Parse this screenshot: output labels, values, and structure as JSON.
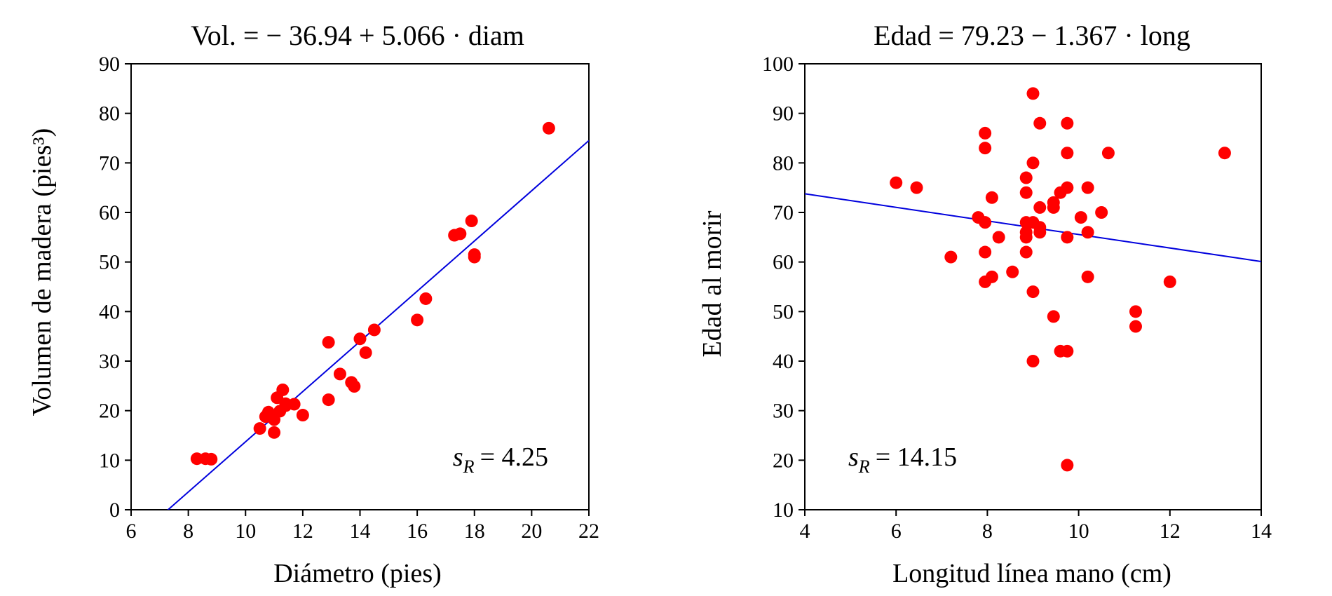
{
  "chart_data": [
    {
      "type": "scatter",
      "title": "Vol. = − 36.94 + 5.066 · diam",
      "xlabel": "Diámetro (pies)",
      "ylabel": "Volumen de madera (pies³)",
      "xlim": [
        6,
        22
      ],
      "ylim": [
        0,
        90
      ],
      "xticks": [
        6,
        8,
        10,
        12,
        14,
        16,
        18,
        20,
        22
      ],
      "yticks": [
        0,
        10,
        20,
        30,
        40,
        50,
        60,
        70,
        80,
        90
      ],
      "grid": false,
      "regression": {
        "intercept": -36.94,
        "slope": 5.066,
        "color": "#0000dd"
      },
      "annotation": {
        "symbol": "s",
        "subscript": "R",
        "text": "= 4.25"
      },
      "point_color": "#ff0000",
      "points": [
        [
          8.3,
          10.3
        ],
        [
          8.6,
          10.3
        ],
        [
          8.8,
          10.2
        ],
        [
          10.5,
          16.4
        ],
        [
          10.7,
          18.8
        ],
        [
          10.8,
          19.7
        ],
        [
          11.0,
          15.6
        ],
        [
          11.0,
          18.2
        ],
        [
          11.1,
          22.6
        ],
        [
          11.2,
          19.9
        ],
        [
          11.3,
          24.2
        ],
        [
          11.4,
          21.0
        ],
        [
          11.4,
          21.4
        ],
        [
          11.7,
          21.3
        ],
        [
          12.0,
          19.1
        ],
        [
          12.9,
          22.2
        ],
        [
          12.9,
          33.8
        ],
        [
          13.3,
          27.4
        ],
        [
          13.7,
          25.7
        ],
        [
          13.8,
          24.9
        ],
        [
          14.0,
          34.5
        ],
        [
          14.2,
          31.7
        ],
        [
          14.5,
          36.3
        ],
        [
          16.0,
          38.3
        ],
        [
          16.3,
          42.6
        ],
        [
          17.3,
          55.4
        ],
        [
          17.5,
          55.7
        ],
        [
          17.9,
          58.3
        ],
        [
          18.0,
          51.5
        ],
        [
          18.0,
          51.0
        ],
        [
          20.6,
          77.0
        ]
      ]
    },
    {
      "type": "scatter",
      "title": "Edad = 79.23 − 1.367 · long",
      "xlabel": "Longitud línea mano (cm)",
      "ylabel": "Edad al morir",
      "xlim": [
        4,
        14
      ],
      "ylim": [
        10,
        100
      ],
      "xticks": [
        4,
        6,
        8,
        10,
        12,
        14
      ],
      "yticks": [
        10,
        20,
        30,
        40,
        50,
        60,
        70,
        80,
        90,
        100
      ],
      "grid": false,
      "regression": {
        "intercept": 79.23,
        "slope": -1.367,
        "color": "#0000dd"
      },
      "annotation": {
        "symbol": "s",
        "subscript": "R",
        "text": "= 14.15"
      },
      "point_color": "#ff0000",
      "points": [
        [
          6.0,
          76
        ],
        [
          6.45,
          75
        ],
        [
          7.2,
          61
        ],
        [
          7.8,
          69
        ],
        [
          7.95,
          86
        ],
        [
          7.95,
          83
        ],
        [
          7.95,
          68
        ],
        [
          7.95,
          62
        ],
        [
          7.95,
          56
        ],
        [
          8.1,
          73
        ],
        [
          8.1,
          57
        ],
        [
          8.25,
          65
        ],
        [
          8.55,
          58
        ],
        [
          8.85,
          77
        ],
        [
          8.85,
          74
        ],
        [
          8.85,
          68
        ],
        [
          8.85,
          66
        ],
        [
          8.85,
          65
        ],
        [
          8.85,
          62
        ],
        [
          9.0,
          94
        ],
        [
          9.0,
          80
        ],
        [
          9.0,
          68
        ],
        [
          9.0,
          54
        ],
        [
          9.0,
          40
        ],
        [
          9.15,
          88
        ],
        [
          9.15,
          71
        ],
        [
          9.15,
          67
        ],
        [
          9.15,
          66
        ],
        [
          9.45,
          72
        ],
        [
          9.45,
          71
        ],
        [
          9.45,
          49
        ],
        [
          9.6,
          74
        ],
        [
          9.6,
          42
        ],
        [
          9.75,
          88
        ],
        [
          9.75,
          82
        ],
        [
          9.75,
          75
        ],
        [
          9.75,
          65
        ],
        [
          9.75,
          42
        ],
        [
          9.75,
          19
        ],
        [
          10.05,
          69
        ],
        [
          10.2,
          75
        ],
        [
          10.2,
          66
        ],
        [
          10.2,
          57
        ],
        [
          10.5,
          70
        ],
        [
          10.65,
          82
        ],
        [
          11.25,
          50
        ],
        [
          11.25,
          47
        ],
        [
          12.0,
          56
        ],
        [
          13.2,
          82
        ]
      ]
    }
  ]
}
